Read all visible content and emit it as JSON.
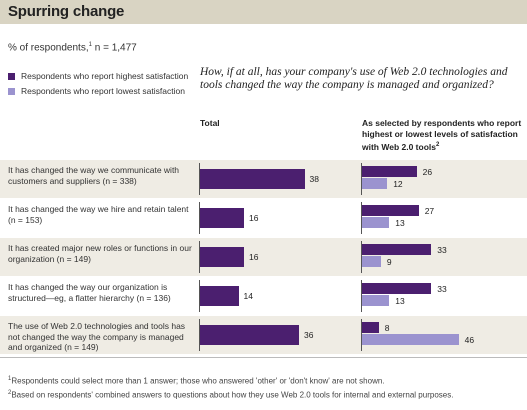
{
  "header": {
    "title": "Spurring change",
    "respondents_prefix": "% of respondents,",
    "respondents_sup": "1",
    "respondents_n": " n = 1,477"
  },
  "legend": [
    {
      "label": "Respondents who report highest satisfaction",
      "color": "#4b1f6f"
    },
    {
      "label": "Respondents who report lowest satisfaction",
      "color": "#9b93cf"
    }
  ],
  "question": "How, if at all, has your company's use of Web 2.0 technologies and tools changed the way the company is managed and organized?",
  "columns": {
    "total": "Total",
    "selected": "As selected by respondents who report highest or lowest levels of satisfaction with Web 2.0 tools",
    "selected_sup": "2"
  },
  "chart_data": {
    "type": "bar",
    "title": "Spurring change",
    "categories": [
      "It has changed the way we communicate with customers and suppliers (n = 338)",
      "It has changed the way we hire and retain talent (n = 153)",
      "It has created major new roles or functions in our organization (n = 149)",
      "It has changed the way our organization is structured—eg, a flatter hierarchy (n = 136)",
      "The use of Web 2.0 technologies and tools has not changed the way the company is managed and organized (n = 149)"
    ],
    "total": [
      38,
      16,
      16,
      14,
      36
    ],
    "series": [
      {
        "name": "Respondents who report highest satisfaction",
        "values": [
          26,
          27,
          33,
          33,
          8
        ]
      },
      {
        "name": "Respondents who report lowest satisfaction",
        "values": [
          12,
          13,
          9,
          13,
          46
        ]
      }
    ],
    "colors": {
      "total": "#4b1f6f",
      "highest": "#4b1f6f",
      "lowest": "#9b93cf"
    }
  },
  "footnotes": [
    {
      "sup": "1",
      "text": "Respondents could select more than 1 answer; those who answered 'other' or 'don't know' are not shown."
    },
    {
      "sup": "2",
      "text": "Based on respondents' combined answers to questions about how they use Web 2.0 tools for internal and external purposes."
    }
  ]
}
